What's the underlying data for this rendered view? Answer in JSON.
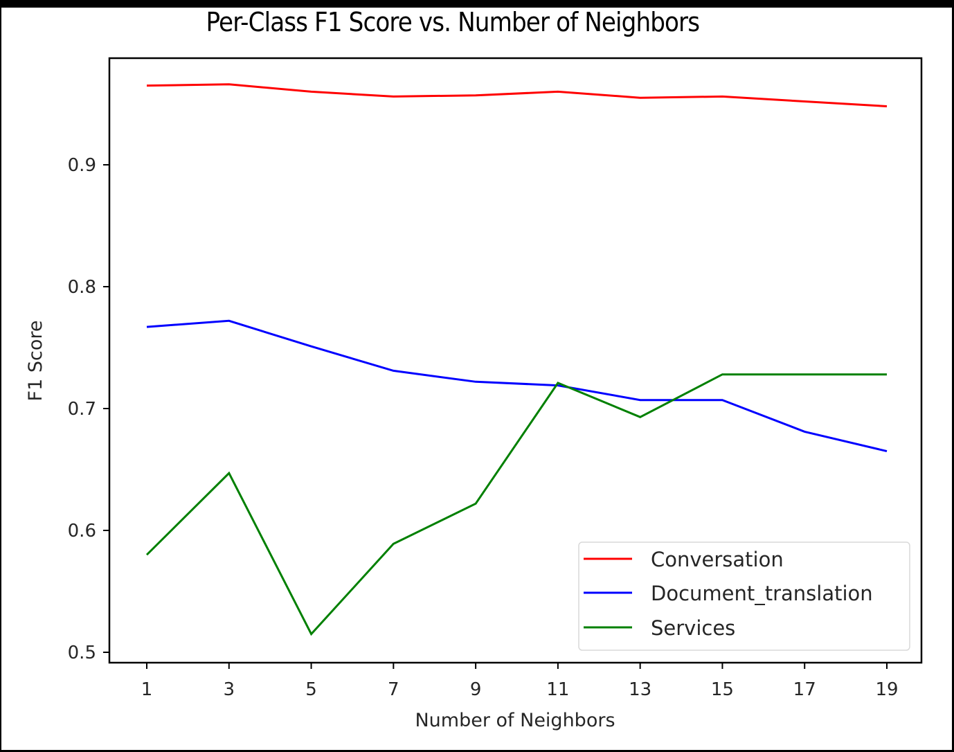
{
  "chart_data": {
    "type": "line",
    "title": "Per-Class F1 Score vs. Number of Neighbors",
    "xlabel": "Number of Neighbors",
    "ylabel": "F1 Score",
    "x": [
      1,
      3,
      5,
      7,
      9,
      11,
      13,
      15,
      17,
      19
    ],
    "xticks": [
      "1",
      "3",
      "5",
      "7",
      "9",
      "11",
      "13",
      "15",
      "17",
      "19"
    ],
    "yticks": [
      "0.5",
      "0.6",
      "0.7",
      "0.8",
      "0.9"
    ],
    "ytick_values": [
      0.5,
      0.6,
      0.7,
      0.8,
      0.9
    ],
    "ylim": [
      0.495,
      0.997
    ],
    "xlim": [
      0.1,
      19.9
    ],
    "grid": false,
    "legend_position": "lower right",
    "series": [
      {
        "name": "Conversation",
        "color": "#ff0000",
        "values": [
          0.965,
          0.966,
          0.96,
          0.956,
          0.957,
          0.96,
          0.955,
          0.956,
          0.952,
          0.948
        ]
      },
      {
        "name": "Document_translation",
        "color": "#0000ff",
        "values": [
          0.767,
          0.772,
          0.751,
          0.731,
          0.722,
          0.719,
          0.707,
          0.707,
          0.681,
          0.665
        ]
      },
      {
        "name": "Services",
        "color": "#008000",
        "values": [
          0.58,
          0.647,
          0.515,
          0.589,
          0.622,
          0.721,
          0.693,
          0.728,
          0.728,
          0.728
        ]
      }
    ]
  }
}
